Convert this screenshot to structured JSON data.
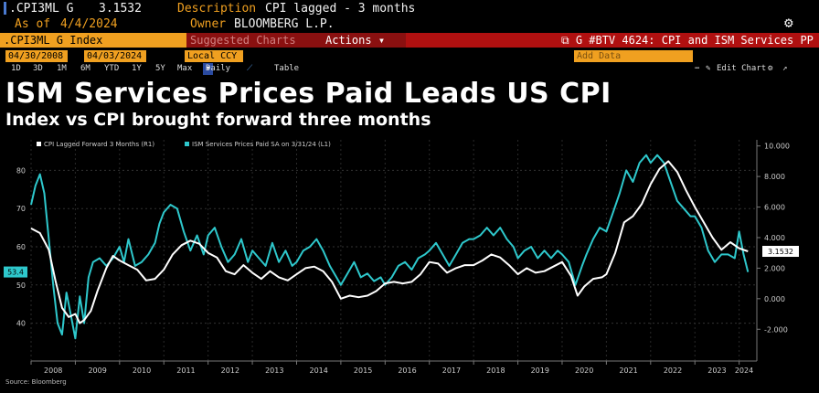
{
  "header": {
    "ticker": ".CPI3ML G",
    "last_value": "3.1532",
    "description_label": "Description",
    "description": "CPI lagged - 3 months",
    "asof_label": "As of",
    "asof": "4/4/2024",
    "owner_label": "Owner",
    "owner": "BLOOMBERG L.P."
  },
  "toolbar": {
    "security": ".CPI3ML G Index",
    "suggested": "Suggested Charts",
    "actions": "Actions",
    "chart_id": "G #BTV 4624: CPI and ISM Services PP",
    "start_date": "04/30/2008",
    "end_date": "04/03/2024",
    "currency": "Local CCY",
    "periods": [
      "1D",
      "3D",
      "1M",
      "6M",
      "YTD",
      "1Y",
      "5Y",
      "Max"
    ],
    "frequency": "Daily",
    "table_label": "Table",
    "add_data": "Add Data",
    "edit_chart": "Edit Chart"
  },
  "headline": "ISM Services Prices Paid Leads US CPI",
  "subhead": "Index vs CPI brought forward three months",
  "source": "Source: Bloomberg",
  "colors": {
    "cpi": "#ffffff",
    "ism": "#2ec8cc",
    "accent": "#f0a020",
    "bar": "#b01010"
  },
  "chart_data": {
    "type": "line",
    "left_axis": {
      "ticks": [
        40,
        50,
        60,
        70,
        80
      ],
      "range": [
        32,
        88
      ]
    },
    "right_axis": {
      "ticks": [
        "10.000",
        "8.000",
        "6.000",
        "4.000",
        "2.000",
        "0.000",
        "-2.000"
      ],
      "range": [
        -3.6,
        10.4
      ]
    },
    "x_ticks": [
      "2008",
      "2009",
      "2010",
      "2011",
      "2012",
      "2013",
      "2014",
      "2015",
      "2016",
      "2017",
      "2018",
      "2019",
      "2020",
      "2021",
      "2022",
      "2023",
      "2024"
    ],
    "x_range": [
      2008.0,
      2024.4
    ],
    "last_left_label": "53.4",
    "last_right_label": "3.1532",
    "series": [
      {
        "name": "CPI Lagged Forward 3 Months (R1)",
        "axis": "right",
        "points": [
          [
            2008.0,
            4.6
          ],
          [
            2008.2,
            4.3
          ],
          [
            2008.4,
            3.2
          ],
          [
            2008.55,
            1.2
          ],
          [
            2008.7,
            -0.6
          ],
          [
            2008.85,
            -1.2
          ],
          [
            2009.0,
            -1.0
          ],
          [
            2009.1,
            -1.6
          ],
          [
            2009.2,
            -1.4
          ],
          [
            2009.35,
            -0.8
          ],
          [
            2009.5,
            0.5
          ],
          [
            2009.7,
            2.0
          ],
          [
            2009.85,
            2.8
          ],
          [
            2010.0,
            2.5
          ],
          [
            2010.2,
            2.2
          ],
          [
            2010.4,
            1.9
          ],
          [
            2010.6,
            1.2
          ],
          [
            2010.8,
            1.3
          ],
          [
            2011.0,
            1.9
          ],
          [
            2011.2,
            2.9
          ],
          [
            2011.4,
            3.5
          ],
          [
            2011.6,
            3.8
          ],
          [
            2011.8,
            3.6
          ],
          [
            2012.0,
            3.0
          ],
          [
            2012.2,
            2.7
          ],
          [
            2012.4,
            1.8
          ],
          [
            2012.6,
            1.6
          ],
          [
            2012.8,
            2.2
          ],
          [
            2013.0,
            1.7
          ],
          [
            2013.2,
            1.3
          ],
          [
            2013.4,
            1.8
          ],
          [
            2013.6,
            1.4
          ],
          [
            2013.8,
            1.2
          ],
          [
            2014.0,
            1.6
          ],
          [
            2014.2,
            2.0
          ],
          [
            2014.4,
            2.1
          ],
          [
            2014.6,
            1.8
          ],
          [
            2014.8,
            1.1
          ],
          [
            2015.0,
            0.0
          ],
          [
            2015.2,
            0.2
          ],
          [
            2015.4,
            0.1
          ],
          [
            2015.6,
            0.2
          ],
          [
            2015.8,
            0.5
          ],
          [
            2016.0,
            1.0
          ],
          [
            2016.2,
            1.1
          ],
          [
            2016.4,
            1.0
          ],
          [
            2016.6,
            1.1
          ],
          [
            2016.8,
            1.6
          ],
          [
            2017.0,
            2.4
          ],
          [
            2017.2,
            2.3
          ],
          [
            2017.4,
            1.7
          ],
          [
            2017.6,
            2.0
          ],
          [
            2017.8,
            2.2
          ],
          [
            2018.0,
            2.2
          ],
          [
            2018.2,
            2.5
          ],
          [
            2018.4,
            2.9
          ],
          [
            2018.6,
            2.7
          ],
          [
            2018.8,
            2.2
          ],
          [
            2019.0,
            1.6
          ],
          [
            2019.2,
            2.0
          ],
          [
            2019.4,
            1.7
          ],
          [
            2019.6,
            1.8
          ],
          [
            2019.8,
            2.1
          ],
          [
            2020.0,
            2.4
          ],
          [
            2020.2,
            1.5
          ],
          [
            2020.35,
            0.2
          ],
          [
            2020.5,
            0.8
          ],
          [
            2020.7,
            1.3
          ],
          [
            2020.9,
            1.4
          ],
          [
            2021.0,
            1.6
          ],
          [
            2021.2,
            3.0
          ],
          [
            2021.4,
            5.0
          ],
          [
            2021.6,
            5.4
          ],
          [
            2021.8,
            6.2
          ],
          [
            2022.0,
            7.5
          ],
          [
            2022.2,
            8.5
          ],
          [
            2022.4,
            9.0
          ],
          [
            2022.6,
            8.3
          ],
          [
            2022.8,
            7.1
          ],
          [
            2023.0,
            6.0
          ],
          [
            2023.2,
            5.0
          ],
          [
            2023.4,
            4.0
          ],
          [
            2023.6,
            3.2
          ],
          [
            2023.8,
            3.7
          ],
          [
            2024.0,
            3.3
          ],
          [
            2024.2,
            3.1
          ]
        ]
      },
      {
        "name": "ISM Services Prices Paid SA on 3/31/24 (L1)",
        "axis": "left",
        "points": [
          [
            2008.0,
            71
          ],
          [
            2008.1,
            76
          ],
          [
            2008.2,
            79
          ],
          [
            2008.3,
            74
          ],
          [
            2008.4,
            62
          ],
          [
            2008.5,
            50
          ],
          [
            2008.6,
            40
          ],
          [
            2008.7,
            37
          ],
          [
            2008.8,
            48
          ],
          [
            2008.9,
            42
          ],
          [
            2009.0,
            36
          ],
          [
            2009.1,
            47
          ],
          [
            2009.2,
            40
          ],
          [
            2009.3,
            52
          ],
          [
            2009.4,
            56
          ],
          [
            2009.55,
            57
          ],
          [
            2009.7,
            55
          ],
          [
            2009.85,
            57
          ],
          [
            2010.0,
            60
          ],
          [
            2010.1,
            56
          ],
          [
            2010.2,
            62
          ],
          [
            2010.35,
            55
          ],
          [
            2010.5,
            56
          ],
          [
            2010.65,
            58
          ],
          [
            2010.8,
            61
          ],
          [
            2010.9,
            66
          ],
          [
            2011.0,
            69
          ],
          [
            2011.15,
            71
          ],
          [
            2011.3,
            70
          ],
          [
            2011.45,
            64
          ],
          [
            2011.6,
            59
          ],
          [
            2011.75,
            63
          ],
          [
            2011.9,
            58
          ],
          [
            2012.0,
            63
          ],
          [
            2012.15,
            65
          ],
          [
            2012.3,
            60
          ],
          [
            2012.45,
            56
          ],
          [
            2012.6,
            58
          ],
          [
            2012.75,
            62
          ],
          [
            2012.9,
            56
          ],
          [
            2013.0,
            59
          ],
          [
            2013.15,
            57
          ],
          [
            2013.3,
            55
          ],
          [
            2013.45,
            61
          ],
          [
            2013.6,
            56
          ],
          [
            2013.75,
            59
          ],
          [
            2013.9,
            55
          ],
          [
            2014.0,
            56
          ],
          [
            2014.15,
            59
          ],
          [
            2014.3,
            60
          ],
          [
            2014.45,
            62
          ],
          [
            2014.6,
            59
          ],
          [
            2014.75,
            55
          ],
          [
            2014.9,
            52
          ],
          [
            2015.0,
            50
          ],
          [
            2015.15,
            53
          ],
          [
            2015.3,
            56
          ],
          [
            2015.45,
            52
          ],
          [
            2015.6,
            53
          ],
          [
            2015.75,
            51
          ],
          [
            2015.9,
            52
          ],
          [
            2016.0,
            50
          ],
          [
            2016.15,
            52
          ],
          [
            2016.3,
            55
          ],
          [
            2016.45,
            56
          ],
          [
            2016.6,
            54
          ],
          [
            2016.75,
            57
          ],
          [
            2016.9,
            58
          ],
          [
            2017.0,
            59
          ],
          [
            2017.15,
            61
          ],
          [
            2017.3,
            58
          ],
          [
            2017.45,
            55
          ],
          [
            2017.6,
            58
          ],
          [
            2017.75,
            61
          ],
          [
            2017.9,
            62
          ],
          [
            2018.0,
            62
          ],
          [
            2018.15,
            63
          ],
          [
            2018.3,
            65
          ],
          [
            2018.45,
            63
          ],
          [
            2018.6,
            65
          ],
          [
            2018.75,
            62
          ],
          [
            2018.9,
            60
          ],
          [
            2019.0,
            57
          ],
          [
            2019.15,
            59
          ],
          [
            2019.3,
            60
          ],
          [
            2019.45,
            57
          ],
          [
            2019.6,
            59
          ],
          [
            2019.75,
            57
          ],
          [
            2019.9,
            59
          ],
          [
            2020.0,
            58
          ],
          [
            2020.15,
            56
          ],
          [
            2020.3,
            50
          ],
          [
            2020.45,
            55
          ],
          [
            2020.55,
            58
          ],
          [
            2020.7,
            62
          ],
          [
            2020.85,
            65
          ],
          [
            2021.0,
            64
          ],
          [
            2021.15,
            69
          ],
          [
            2021.3,
            74
          ],
          [
            2021.45,
            80
          ],
          [
            2021.6,
            77
          ],
          [
            2021.75,
            82
          ],
          [
            2021.9,
            84
          ],
          [
            2022.0,
            82
          ],
          [
            2022.15,
            84
          ],
          [
            2022.3,
            82
          ],
          [
            2022.45,
            77
          ],
          [
            2022.6,
            72
          ],
          [
            2022.75,
            70
          ],
          [
            2022.9,
            68
          ],
          [
            2023.0,
            68
          ],
          [
            2023.15,
            65
          ],
          [
            2023.3,
            59
          ],
          [
            2023.45,
            56
          ],
          [
            2023.6,
            58
          ],
          [
            2023.75,
            58
          ],
          [
            2023.9,
            57
          ],
          [
            2024.0,
            64
          ],
          [
            2024.1,
            58
          ],
          [
            2024.2,
            53.4
          ]
        ]
      }
    ]
  }
}
